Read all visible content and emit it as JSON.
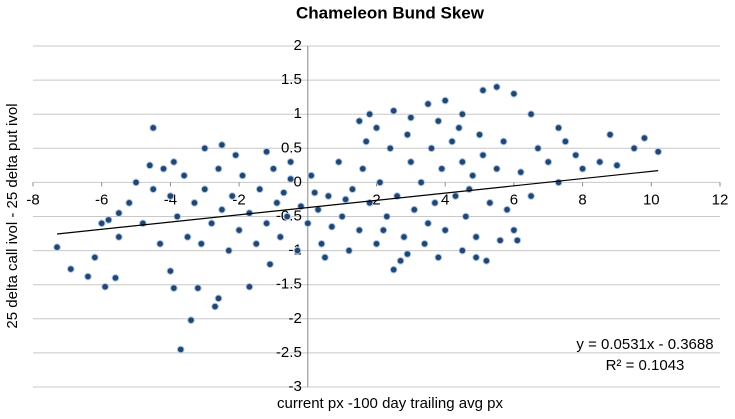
{
  "chart_data": {
    "type": "scatter",
    "title": "Chameleon Bund Skew",
    "x_label": "current px -100 day trailing avg px",
    "y_label": "25 delta call ivol - 25 delta put ivol",
    "xlim": [
      -8,
      12
    ],
    "ylim": [
      -3,
      2
    ],
    "xticks": [
      -8,
      -6,
      -4,
      -2,
      2,
      4,
      6,
      8,
      10,
      12
    ],
    "yticks": [
      -3,
      -2.5,
      -2,
      -1.5,
      -1,
      -0.5,
      0,
      0.5,
      1,
      1.5,
      2
    ],
    "grid": true,
    "x": [
      -7.3,
      -6.9,
      -6.4,
      -6.2,
      -5.9,
      -5.6,
      -5.8,
      -5.5,
      -4.5,
      -4.2,
      -3.9,
      -3.7,
      -3.4,
      -3.2,
      -2.7,
      -2.6,
      -1.7,
      -4.0,
      -3.0,
      -2.5,
      -1.2,
      -0.5,
      1.5,
      1.8,
      2.0,
      2.5,
      3.0,
      3.5,
      4.0,
      4.5,
      5.1,
      5.5,
      5.0,
      6.0,
      6.5,
      5.7,
      7.3,
      7.5,
      8.8,
      9.8,
      10.2,
      9.5,
      8.5,
      8.0,
      7.0,
      7.3,
      6.5,
      6.0,
      5.6,
      6.1,
      4.5,
      4.9,
      5.2,
      3.8,
      2.7,
      2.5,
      2.9,
      6.7,
      7.8,
      9.0,
      6.2,
      -4,
      -3.8,
      -3.6,
      -3.5,
      -3.3,
      -3.1,
      -3,
      -2.8,
      -2.6,
      -2.5,
      -2.3,
      -2.2,
      -2,
      -1.9,
      -1.7,
      -1.5,
      -1.4,
      -1.2,
      -1,
      -0.9,
      -0.8,
      -0.6,
      -0.5,
      -0.3,
      -0.2,
      0,
      0.1,
      0.3,
      0.4,
      0.6,
      0.7,
      0.9,
      1,
      1.2,
      1.3,
      1.5,
      1.6,
      1.8,
      2,
      2.1,
      2.3,
      2.4,
      2.6,
      2.8,
      3,
      3.1,
      3.3,
      3.4,
      3.6,
      3.7,
      3.9,
      4,
      4.2,
      4.3,
      4.5,
      4.6,
      4.8,
      4.9,
      5.1,
      5.3,
      5.5,
      5.8,
      -4.5,
      -4.8,
      -5.2,
      -5,
      -4.3,
      -5.5,
      -6,
      -4.6,
      -3.9,
      -2.1,
      -1.1,
      0.5,
      1.7,
      2.9,
      3.8,
      4.4,
      4.7,
      3.5,
      2.2,
      1.1,
      0.2,
      -0.7
    ],
    "series": [
      {
        "color": "#24466e",
        "values": [
          -0.95,
          -1.27,
          -1.38,
          -1.1,
          -1.53,
          -1.4,
          -0.55,
          -0.45,
          0.8,
          0.2,
          -1.55,
          -2.45,
          -2.02,
          -1.55,
          -1.82,
          -1.7,
          -1.53,
          -1.3,
          0.5,
          0.55,
          0.45,
          0.3,
          0.9,
          1.0,
          0.8,
          1.05,
          0.95,
          1.15,
          1.2,
          1.0,
          1.35,
          1.4,
          0.7,
          1.3,
          1.0,
          0.6,
          0.8,
          0.6,
          0.7,
          0.65,
          0.45,
          0.5,
          0.3,
          0.2,
          0.3,
          0.0,
          -0.2,
          -0.7,
          -0.85,
          -0.85,
          -1.0,
          -1.1,
          -1.15,
          -1.1,
          -1.15,
          -1.28,
          -1.05,
          0.5,
          0.4,
          0.25,
          0.15,
          -0.2,
          -0.5,
          0.1,
          -0.8,
          -0.3,
          -0.9,
          -0.1,
          -0.6,
          0.2,
          -0.4,
          -1.0,
          -0.2,
          -0.7,
          0.1,
          -0.45,
          -0.9,
          -0.1,
          -0.6,
          0.2,
          -0.3,
          -0.8,
          -0.5,
          0.05,
          -1.0,
          -0.35,
          -0.6,
          0.1,
          -0.4,
          -0.9,
          -0.2,
          -0.65,
          0.3,
          -0.5,
          -1.0,
          -0.1,
          -0.7,
          0.2,
          -0.3,
          -0.9,
          0.0,
          -0.5,
          0.5,
          -0.2,
          -0.8,
          0.3,
          -0.4,
          0.0,
          -0.9,
          0.5,
          -0.3,
          0.2,
          -0.7,
          0.6,
          -0.2,
          0.3,
          -0.5,
          0.1,
          -0.8,
          0.4,
          -0.3,
          0.2,
          -0.4,
          -0.1,
          -0.6,
          -0.3,
          0.0,
          -0.9,
          -0.8,
          -0.6,
          0.25,
          0.3,
          0.4,
          -1.2,
          -1.1,
          0.6,
          0.7,
          0.9,
          0.8,
          -0.1,
          -0.6,
          -0.7,
          -0.25,
          -0.15,
          -0.15
        ]
      }
    ],
    "trendline": {
      "slope": 0.0531,
      "intercept": -0.3688,
      "x_range": [
        -7.3,
        10.2
      ],
      "equation": "y = 0.0531x - 0.3688",
      "r_squared": "R² = 0.1043"
    }
  }
}
